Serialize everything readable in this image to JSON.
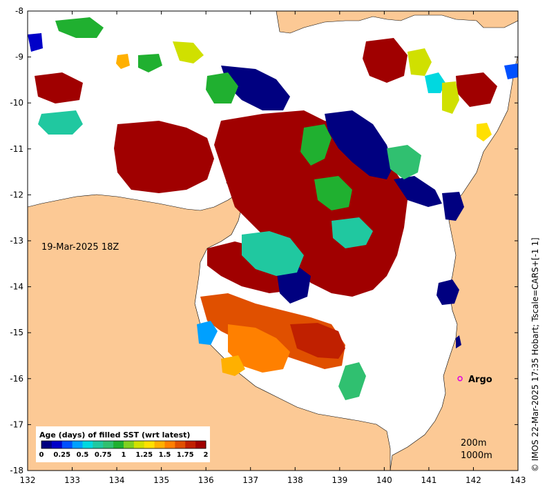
{
  "map": {
    "date_label": "19-Mar-2025 18Z",
    "argo_label": "Argo",
    "contour_labels": [
      "200m",
      "1000m"
    ],
    "credit": "© IMOS 22-Mar-2025 17:35 Hobart; Tscale=CARS+[-1 1]",
    "land_color": "#fcc995",
    "ocean_color": "#ffffff",
    "argo_color": "#e000e0",
    "axes": {
      "lon_ticks": [
        "132",
        "133",
        "134",
        "135",
        "136",
        "137",
        "138",
        "139",
        "140",
        "141",
        "142",
        "143"
      ],
      "lat_ticks": [
        "-8",
        "-9",
        "-10",
        "-11",
        "-12",
        "-13",
        "-14",
        "-15",
        "-16",
        "-17",
        "-18"
      ],
      "lon_range": [
        132,
        143
      ],
      "lat_range": [
        -18,
        -8
      ]
    },
    "argo_float": {
      "lon": 141.7,
      "lat": -16.0
    }
  },
  "colorbar": {
    "title": "Age (days) of filled SST (wrt latest)",
    "tick_labels": [
      "0",
      "0.25",
      "0.5",
      "0.75",
      "1",
      "1.25",
      "1.5",
      "1.75",
      "2"
    ],
    "colors": [
      "#000080",
      "#0000c8",
      "#0050ff",
      "#00a0ff",
      "#00d8e0",
      "#20c8a0",
      "#30c070",
      "#20b030",
      "#80d020",
      "#d0e000",
      "#ffe000",
      "#ffb000",
      "#ff8000",
      "#e05000",
      "#c02000",
      "#a00000"
    ]
  }
}
